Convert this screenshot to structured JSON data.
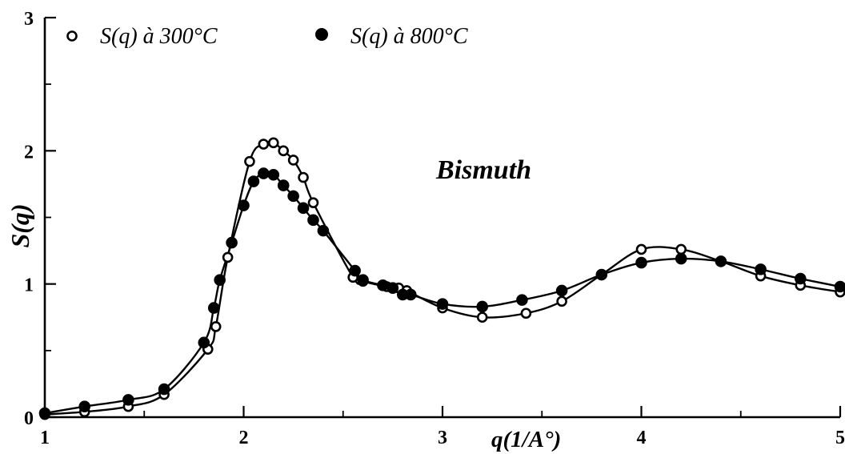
{
  "chart_data": {
    "type": "scatter",
    "xlabel": "q(1/A°)",
    "ylabel": "S(q)",
    "xlim": [
      1,
      5
    ],
    "ylim": [
      0,
      3
    ],
    "x_ticks": [
      1,
      2,
      3,
      4,
      5
    ],
    "y_ticks": [
      0,
      1,
      2,
      3
    ],
    "grid": false,
    "legend_position": "top-left",
    "annotation": "Bismuth",
    "series": [
      {
        "name": "S(q) à 300°C",
        "marker": "open-circle",
        "points": [
          {
            "x": 1.0,
            "y": 0.02
          },
          {
            "x": 1.2,
            "y": 0.04
          },
          {
            "x": 1.42,
            "y": 0.08
          },
          {
            "x": 1.6,
            "y": 0.17
          },
          {
            "x": 1.82,
            "y": 0.51
          },
          {
            "x": 1.86,
            "y": 0.68
          },
          {
            "x": 1.92,
            "y": 1.2
          },
          {
            "x": 2.03,
            "y": 1.92
          },
          {
            "x": 2.1,
            "y": 2.05
          },
          {
            "x": 2.15,
            "y": 2.06
          },
          {
            "x": 2.2,
            "y": 2.0
          },
          {
            "x": 2.25,
            "y": 1.93
          },
          {
            "x": 2.3,
            "y": 1.8
          },
          {
            "x": 2.35,
            "y": 1.61
          },
          {
            "x": 2.55,
            "y": 1.05
          },
          {
            "x": 2.6,
            "y": 1.02
          },
          {
            "x": 2.72,
            "y": 0.98
          },
          {
            "x": 2.78,
            "y": 0.97
          },
          {
            "x": 2.82,
            "y": 0.95
          },
          {
            "x": 3.0,
            "y": 0.82
          },
          {
            "x": 3.2,
            "y": 0.75
          },
          {
            "x": 3.42,
            "y": 0.78
          },
          {
            "x": 3.6,
            "y": 0.87
          },
          {
            "x": 3.8,
            "y": 1.07
          },
          {
            "x": 4.0,
            "y": 1.26
          },
          {
            "x": 4.2,
            "y": 1.26
          },
          {
            "x": 4.4,
            "y": 1.17
          },
          {
            "x": 4.6,
            "y": 1.06
          },
          {
            "x": 4.8,
            "y": 0.99
          },
          {
            "x": 5.0,
            "y": 0.94
          }
        ]
      },
      {
        "name": "S(q) à 800°C",
        "marker": "filled-circle",
        "points": [
          {
            "x": 1.0,
            "y": 0.03
          },
          {
            "x": 1.2,
            "y": 0.08
          },
          {
            "x": 1.42,
            "y": 0.13
          },
          {
            "x": 1.6,
            "y": 0.21
          },
          {
            "x": 1.8,
            "y": 0.56
          },
          {
            "x": 1.85,
            "y": 0.82
          },
          {
            "x": 1.88,
            "y": 1.03
          },
          {
            "x": 1.94,
            "y": 1.31
          },
          {
            "x": 2.0,
            "y": 1.59
          },
          {
            "x": 2.05,
            "y": 1.77
          },
          {
            "x": 2.1,
            "y": 1.83
          },
          {
            "x": 2.15,
            "y": 1.82
          },
          {
            "x": 2.2,
            "y": 1.74
          },
          {
            "x": 2.25,
            "y": 1.66
          },
          {
            "x": 2.3,
            "y": 1.57
          },
          {
            "x": 2.35,
            "y": 1.48
          },
          {
            "x": 2.4,
            "y": 1.4
          },
          {
            "x": 2.56,
            "y": 1.1
          },
          {
            "x": 2.6,
            "y": 1.03
          },
          {
            "x": 2.7,
            "y": 0.99
          },
          {
            "x": 2.75,
            "y": 0.97
          },
          {
            "x": 2.8,
            "y": 0.92
          },
          {
            "x": 2.84,
            "y": 0.92
          },
          {
            "x": 3.0,
            "y": 0.85
          },
          {
            "x": 3.2,
            "y": 0.83
          },
          {
            "x": 3.4,
            "y": 0.88
          },
          {
            "x": 3.6,
            "y": 0.95
          },
          {
            "x": 3.8,
            "y": 1.07
          },
          {
            "x": 4.0,
            "y": 1.16
          },
          {
            "x": 4.2,
            "y": 1.19
          },
          {
            "x": 4.4,
            "y": 1.17
          },
          {
            "x": 4.6,
            "y": 1.11
          },
          {
            "x": 4.8,
            "y": 1.04
          },
          {
            "x": 5.0,
            "y": 0.98
          }
        ]
      }
    ]
  },
  "legend": {
    "open_label": "S(q) à 300°C",
    "filled_label": "S(q) à 800°C"
  },
  "labels": {
    "annotation": "Bismuth",
    "x_axis_title": "q(1/A°)",
    "y_axis_title": "S(q)"
  }
}
